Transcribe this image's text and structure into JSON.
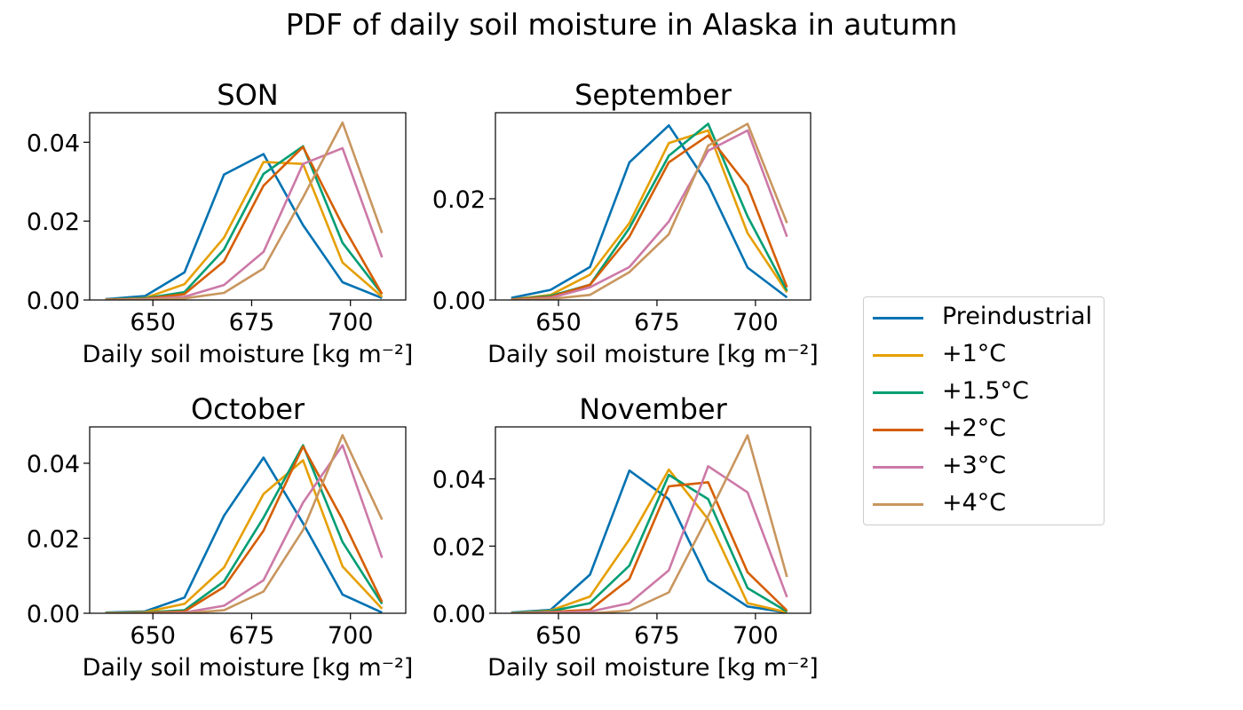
{
  "figure": {
    "title": "PDF of daily soil moisture in Alaska in autumn"
  },
  "legend": {
    "items": [
      {
        "label": "Preindustrial",
        "color": "#0072b2"
      },
      {
        "label": "+1°C",
        "color": "#e69f00"
      },
      {
        "label": "+1.5°C",
        "color": "#009e73"
      },
      {
        "label": "+2°C",
        "color": "#d55e00"
      },
      {
        "label": "+3°C",
        "color": "#cc79a7"
      },
      {
        "label": "+4°C",
        "color": "#c8965f"
      }
    ]
  },
  "chart_data": [
    {
      "type": "line",
      "title": "SON",
      "xlabel": "Daily soil moisture [kg m⁻²]",
      "xlim": [
        634,
        714
      ],
      "ylim": [
        0,
        0.0475
      ],
      "xticks": [
        650,
        675,
        700
      ],
      "xtick_labels": [
        "650",
        "675",
        "700"
      ],
      "yticks": [
        0,
        0.02,
        0.04
      ],
      "ytick_labels": [
        "0.00",
        "0.02",
        "0.04"
      ],
      "x": [
        638,
        648,
        658,
        668,
        678,
        688,
        698,
        708
      ],
      "series": [
        {
          "name": "Preindustrial",
          "values": [
            0.0002,
            0.001,
            0.007,
            0.0318,
            0.037,
            0.019,
            0.0045,
            0.0005
          ]
        },
        {
          "name": "+1°C",
          "values": [
            0.0001,
            0.0005,
            0.004,
            0.0158,
            0.035,
            0.0345,
            0.0095,
            0.0008
          ]
        },
        {
          "name": "+1.5°C",
          "values": [
            0.0001,
            0.0004,
            0.002,
            0.0128,
            0.032,
            0.039,
            0.0145,
            0.0015
          ]
        },
        {
          "name": "+2°C",
          "values": [
            0.0001,
            0.0003,
            0.0015,
            0.0098,
            0.029,
            0.0388,
            0.019,
            0.0015
          ]
        },
        {
          "name": "+3°C",
          "values": [
            0,
            0.0002,
            0.0008,
            0.0038,
            0.0122,
            0.0345,
            0.0385,
            0.0108
          ]
        },
        {
          "name": "+4°C",
          "values": [
            0,
            0.0001,
            0.0004,
            0.0018,
            0.008,
            0.026,
            0.045,
            0.017
          ]
        }
      ]
    },
    {
      "type": "line",
      "title": "September",
      "xlabel": "Daily soil moisture [kg m⁻²]",
      "xlim": [
        634,
        714
      ],
      "ylim": [
        0,
        0.037
      ],
      "xticks": [
        650,
        675,
        700
      ],
      "xtick_labels": [
        "650",
        "675",
        "700"
      ],
      "yticks": [
        0,
        0.02
      ],
      "ytick_labels": [
        "0.00",
        "0.02"
      ],
      "x": [
        638,
        648,
        658,
        668,
        678,
        688,
        698,
        708
      ],
      "series": [
        {
          "name": "Preindustrial",
          "values": [
            0.0004,
            0.002,
            0.0065,
            0.0272,
            0.0345,
            0.0228,
            0.0064,
            0.0005
          ]
        },
        {
          "name": "+1°C",
          "values": [
            0.0001,
            0.001,
            0.005,
            0.0152,
            0.031,
            0.0335,
            0.0132,
            0.0015
          ]
        },
        {
          "name": "+1.5°C",
          "values": [
            0.0001,
            0.0008,
            0.003,
            0.0142,
            0.0285,
            0.0348,
            0.0165,
            0.0018
          ]
        },
        {
          "name": "+2°C",
          "values": [
            0.0001,
            0.0006,
            0.003,
            0.0125,
            0.0272,
            0.0325,
            0.0225,
            0.0025
          ]
        },
        {
          "name": "+3°C",
          "values": [
            0,
            0.0004,
            0.0025,
            0.0065,
            0.0155,
            0.0295,
            0.0335,
            0.0125
          ]
        },
        {
          "name": "+4°C",
          "values": [
            0,
            0.0002,
            0.001,
            0.0055,
            0.013,
            0.0305,
            0.0348,
            0.0152
          ]
        }
      ]
    },
    {
      "type": "line",
      "title": "October",
      "xlabel": "Daily soil moisture [kg m⁻²]",
      "xlim": [
        634,
        714
      ],
      "ylim": [
        0,
        0.0497
      ],
      "xticks": [
        650,
        675,
        700
      ],
      "xtick_labels": [
        "650",
        "675",
        "700"
      ],
      "yticks": [
        0,
        0.02,
        0.04
      ],
      "ytick_labels": [
        "0.00",
        "0.02",
        "0.04"
      ],
      "x": [
        638,
        648,
        658,
        668,
        678,
        688,
        698,
        708
      ],
      "series": [
        {
          "name": "Preindustrial",
          "values": [
            0.0002,
            0.0005,
            0.0042,
            0.026,
            0.0415,
            0.024,
            0.005,
            0.0002
          ]
        },
        {
          "name": "+1°C",
          "values": [
            0.0001,
            0.0003,
            0.0025,
            0.0122,
            0.0318,
            0.0408,
            0.0125,
            0.0012
          ]
        },
        {
          "name": "+1.5°C",
          "values": [
            0.0001,
            0.0002,
            0.0008,
            0.0085,
            0.0255,
            0.0448,
            0.019,
            0.0025
          ]
        },
        {
          "name": "+2°C",
          "values": [
            0,
            0.0001,
            0.0005,
            0.007,
            0.022,
            0.0445,
            0.025,
            0.003
          ]
        },
        {
          "name": "+3°C",
          "values": [
            0,
            0,
            0.0002,
            0.002,
            0.0088,
            0.0295,
            0.0448,
            0.0148
          ]
        },
        {
          "name": "+4°C",
          "values": [
            0,
            0,
            0,
            0.0008,
            0.0058,
            0.0222,
            0.0475,
            0.025
          ]
        }
      ]
    },
    {
      "type": "line",
      "title": "November",
      "xlabel": "Daily soil moisture [kg m⁻²]",
      "xlim": [
        634,
        714
      ],
      "ylim": [
        0,
        0.0555
      ],
      "xticks": [
        650,
        675,
        700
      ],
      "xtick_labels": [
        "650",
        "675",
        "700"
      ],
      "yticks": [
        0,
        0.02,
        0.04
      ],
      "ytick_labels": [
        "0.00",
        "0.02",
        "0.04"
      ],
      "x": [
        638,
        648,
        658,
        668,
        678,
        688,
        698,
        708
      ],
      "series": [
        {
          "name": "Preindustrial",
          "values": [
            0.0002,
            0.001,
            0.0115,
            0.0425,
            0.034,
            0.0098,
            0.002,
            0.0002
          ]
        },
        {
          "name": "+1°C",
          "values": [
            0.0001,
            0.0008,
            0.005,
            0.022,
            0.0428,
            0.028,
            0.003,
            0.0003
          ]
        },
        {
          "name": "+1.5°C",
          "values": [
            0.0001,
            0.0006,
            0.003,
            0.0142,
            0.0412,
            0.034,
            0.0075,
            0.0005
          ]
        },
        {
          "name": "+2°C",
          "values": [
            0,
            0.0004,
            0.001,
            0.0102,
            0.0378,
            0.039,
            0.0122,
            0.0008
          ]
        },
        {
          "name": "+3°C",
          "values": [
            0,
            0.0002,
            0.0005,
            0.003,
            0.0128,
            0.0438,
            0.036,
            0.0048
          ]
        },
        {
          "name": "+4°C",
          "values": [
            0,
            0,
            0,
            0.0008,
            0.0062,
            0.029,
            0.053,
            0.0108
          ]
        }
      ]
    }
  ]
}
